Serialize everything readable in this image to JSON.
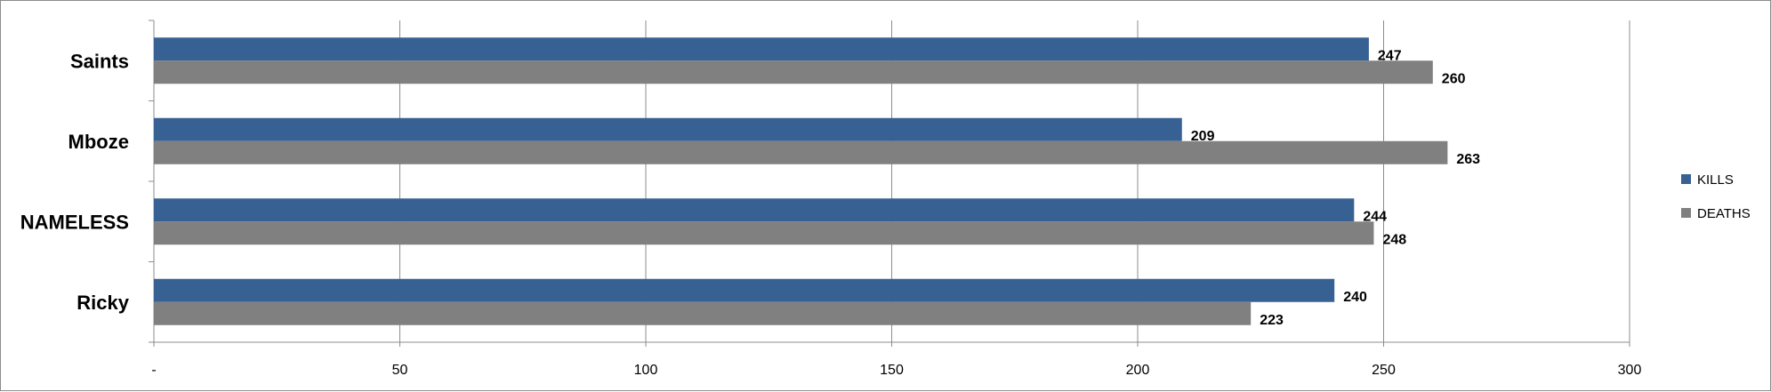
{
  "chart_data": {
    "type": "bar",
    "orientation": "horizontal",
    "title": "",
    "xlabel": "",
    "ylabel": "",
    "categories": [
      "Saints",
      "Mboze",
      "NAMELESS",
      "Ricky"
    ],
    "series": [
      {
        "name": "KILLS",
        "color": "#386193",
        "values": [
          247,
          209,
          244,
          240
        ]
      },
      {
        "name": "DEATHS",
        "color": "#808080",
        "values": [
          260,
          263,
          248,
          223
        ]
      }
    ],
    "xlim": [
      0,
      300
    ],
    "x_ticks": [
      0,
      50,
      100,
      150,
      200,
      250,
      300
    ],
    "x_tick_labels": [
      "-",
      "50",
      "100",
      "150",
      "200",
      "250",
      "300"
    ],
    "grid": "vertical",
    "legend_position": "right",
    "data_labels": true
  }
}
